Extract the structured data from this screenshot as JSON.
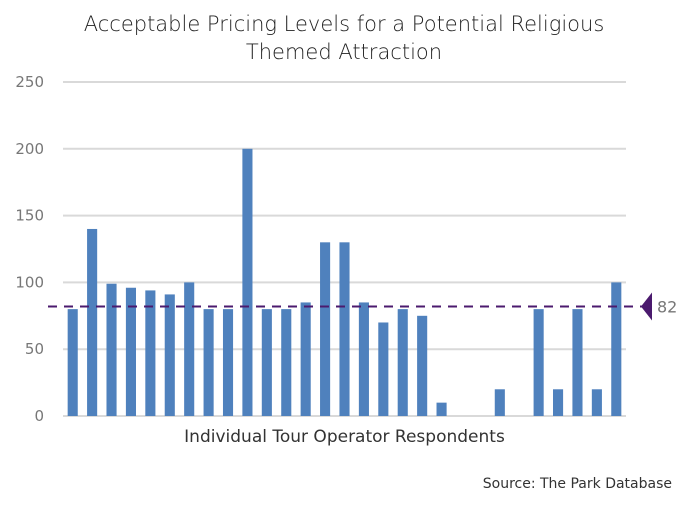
{
  "chart_data": {
    "type": "bar",
    "title_line1": "Acceptable Pricing Levels for a Potential Religious",
    "title_line2": "Themed Attraction",
    "xlabel": "Individual Tour Operator Respondents",
    "ylabel": "",
    "ylim": [
      0,
      250
    ],
    "yticks": [
      0,
      50,
      100,
      150,
      200,
      250
    ],
    "grid": true,
    "values": [
      80,
      140,
      99,
      96,
      94,
      91,
      100,
      80,
      80,
      200,
      80,
      80,
      85,
      130,
      130,
      85,
      70,
      80,
      75,
      10,
      0,
      0,
      20,
      0,
      80,
      20,
      80,
      20,
      100
    ],
    "reference_line": {
      "value": 82,
      "label": "82"
    },
    "colors": {
      "bar": "#4f81bd",
      "reference": "#4b1a6e",
      "grid": "#d9d9d9"
    }
  },
  "source": "Source: The Park Database"
}
